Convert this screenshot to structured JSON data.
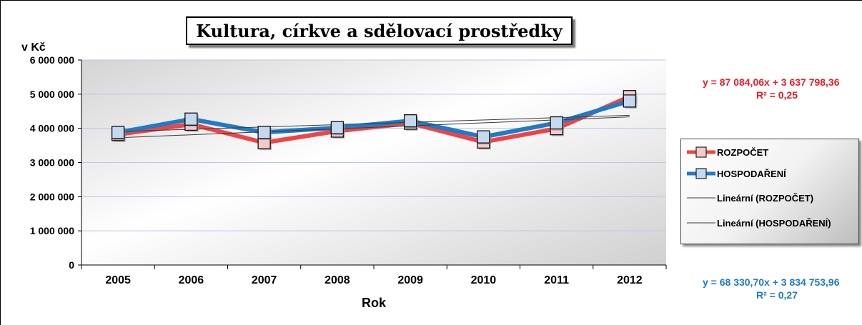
{
  "title": "Kultura, církve a sdělovací prostředky",
  "colors": {
    "rozpocet": "#ef4444",
    "hospodareni": "#1f7bc6",
    "marker_rozpocet_fill": "#f6c9c9",
    "marker_hospodareni_fill": "#c4d9ef",
    "trend": "#3a3a3a",
    "grid": "#b7c9e4"
  },
  "chart_data": {
    "type": "line",
    "ylabel": "v Kč",
    "xlabel": "Rok",
    "categories": [
      "2005",
      "2006",
      "2007",
      "2008",
      "2009",
      "2010",
      "2011",
      "2012"
    ],
    "y_ticks": [
      "0",
      "1 000 000",
      "2 000 000",
      "3 000 000",
      "4 000 000",
      "5 000 000",
      "6 000 000"
    ],
    "ylim": [
      0,
      6000000
    ],
    "grid": true,
    "legend_position": "right",
    "series": [
      {
        "name": "ROZPOČET",
        "values": [
          3820000,
          4120000,
          3580000,
          3920000,
          4150000,
          3600000,
          3990000,
          4930000
        ]
      },
      {
        "name": "HOSPODAŘENÍ",
        "values": [
          3880000,
          4270000,
          3880000,
          4020000,
          4220000,
          3750000,
          4160000,
          4800000
        ]
      }
    ],
    "trendlines": [
      {
        "name": "Lineární (ROZPOČET)",
        "slope": 87084.06,
        "intercept": 3637798.36,
        "equation": "y = 87 084,06x + 3 637 798,36",
        "r2": "R² = 0,25"
      },
      {
        "name": "Lineární (HOSPODAŘENÍ)",
        "slope": 68330.7,
        "intercept": 3834753.96,
        "equation": "y = 68 330,70x + 3 834 753,96",
        "r2": "R² = 0,27"
      }
    ]
  }
}
